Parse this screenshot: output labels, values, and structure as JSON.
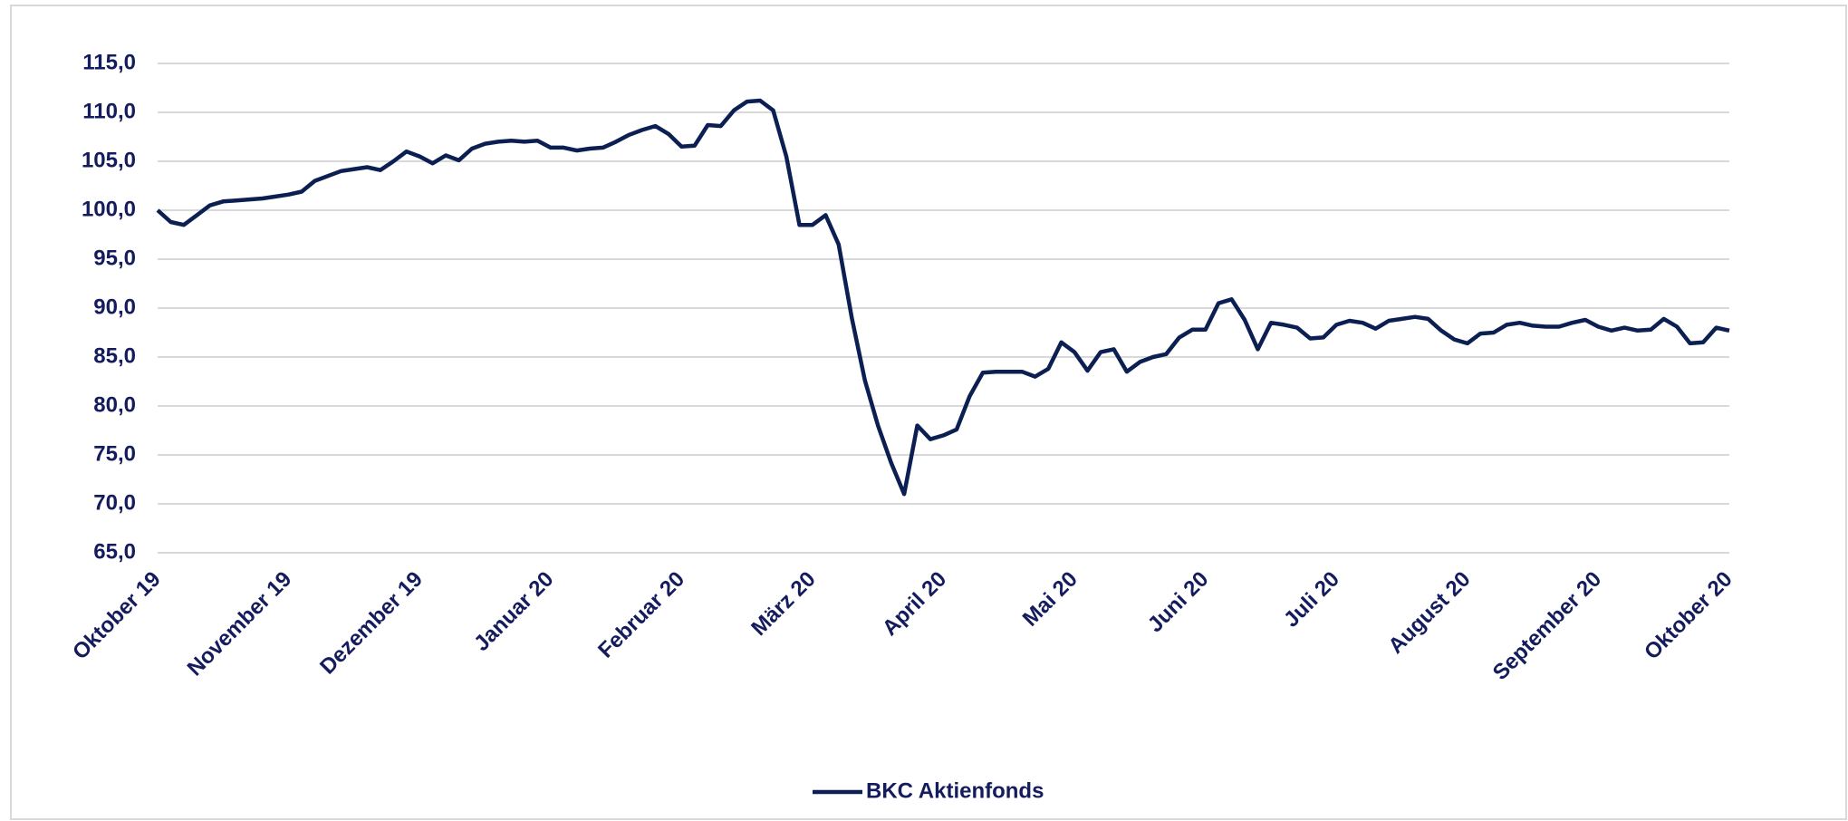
{
  "chart_data": {
    "type": "line",
    "categories": [
      "Oktober 19",
      null,
      null,
      null,
      null,
      null,
      null,
      null,
      null,
      null,
      "November 19",
      null,
      null,
      null,
      null,
      null,
      null,
      null,
      null,
      null,
      "Dezember 19",
      null,
      null,
      null,
      null,
      null,
      null,
      null,
      null,
      null,
      "Januar 20",
      null,
      null,
      null,
      null,
      null,
      null,
      null,
      null,
      null,
      "Februar 20",
      null,
      null,
      null,
      null,
      null,
      null,
      null,
      null,
      null,
      "März 20",
      null,
      null,
      null,
      null,
      null,
      null,
      null,
      null,
      null,
      "April 20",
      null,
      null,
      null,
      null,
      null,
      null,
      null,
      null,
      null,
      "Mai 20",
      null,
      null,
      null,
      null,
      null,
      null,
      null,
      null,
      null,
      "Juni 20",
      null,
      null,
      null,
      null,
      null,
      null,
      null,
      null,
      null,
      "Juli 20",
      null,
      null,
      null,
      null,
      null,
      null,
      null,
      null,
      null,
      "August 20",
      null,
      null,
      null,
      null,
      null,
      null,
      null,
      null,
      null,
      "September 20",
      null,
      null,
      null,
      null,
      null,
      null,
      null,
      null,
      null,
      "Oktober 20"
    ],
    "series": [
      {
        "name": "BKC Aktienfonds",
        "color": "#0c1f52",
        "values": [
          100,
          98.8,
          98.5,
          99.5,
          100.5,
          100.9,
          101.0,
          101.1,
          101.2,
          101.4,
          101.6,
          101.9,
          103.0,
          103.5,
          104.0,
          104.2,
          104.4,
          104.1,
          105.0,
          106.0,
          105.5,
          104.8,
          105.6,
          105.1,
          106.3,
          106.8,
          107.0,
          107.1,
          107.0,
          107.1,
          106.4,
          106.4,
          106.1,
          106.3,
          106.4,
          107.0,
          107.7,
          108.2,
          108.6,
          107.8,
          106.5,
          106.6,
          108.7,
          108.6,
          110.2,
          111.1,
          111.2,
          110.2,
          105.5,
          98.5,
          98.5,
          99.5,
          96.5,
          89.0,
          82.6,
          78.0,
          74.2,
          71.0,
          78.0,
          76.6,
          77.0,
          77.6,
          81.0,
          83.4,
          83.5,
          83.5,
          83.5,
          83.0,
          83.8,
          86.5,
          85.5,
          83.6,
          85.5,
          85.8,
          83.5,
          84.5,
          85.0,
          85.3,
          87.0,
          87.8,
          87.8,
          90.5,
          90.9,
          88.8,
          85.8,
          88.5,
          88.3,
          88.0,
          86.9,
          87.0,
          88.3,
          88.7,
          88.5,
          87.9,
          88.7,
          88.9,
          89.1,
          88.9,
          87.7,
          86.8,
          86.4,
          87.4,
          87.5,
          88.3,
          88.5,
          88.2,
          88.1,
          88.1,
          88.5,
          88.8,
          88.1,
          87.7,
          88.0,
          87.7,
          87.8,
          88.9,
          88.1,
          86.4,
          86.5,
          88.0,
          87.7
        ]
      }
    ],
    "ylim": [
      65,
      115
    ],
    "yticks": [
      {
        "value": 65,
        "label": "65,0"
      },
      {
        "value": 70,
        "label": "70,0"
      },
      {
        "value": 75,
        "label": "75,0"
      },
      {
        "value": 80,
        "label": "80,0"
      },
      {
        "value": 85,
        "label": "85,0"
      },
      {
        "value": 90,
        "label": "90,0"
      },
      {
        "value": 95,
        "label": "95,0"
      },
      {
        "value": 100,
        "label": "100,0"
      },
      {
        "value": 105,
        "label": "105,0"
      },
      {
        "value": 110,
        "label": "110,0"
      },
      {
        "value": 115,
        "label": "115,0"
      }
    ],
    "grid": true,
    "legend": "bottom"
  }
}
